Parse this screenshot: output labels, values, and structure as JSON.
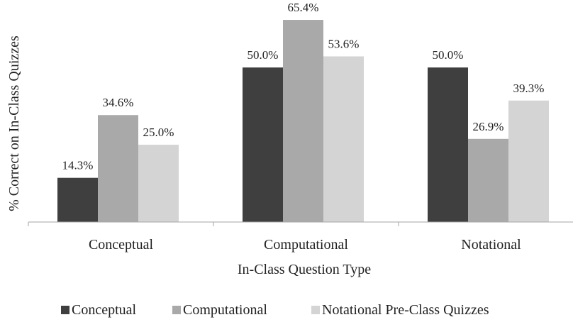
{
  "chart_data": {
    "type": "bar",
    "categories": [
      "Conceptual",
      "Computational",
      "Notational"
    ],
    "series": [
      {
        "name": "Conceptual",
        "values": [
          14.3,
          50.0,
          50.0
        ],
        "labels": [
          "14.3%",
          "50.0%",
          "50.0%"
        ]
      },
      {
        "name": "Computational",
        "values": [
          34.6,
          65.4,
          26.9
        ],
        "labels": [
          "34.6%",
          "65.4%",
          "26.9%"
        ]
      },
      {
        "name": "Notational Pre-Class Quizzes",
        "values": [
          25.0,
          53.6,
          39.3
        ],
        "labels": [
          "25.0%",
          "53.6%",
          "39.3%"
        ]
      }
    ],
    "title": "",
    "xlabel": "In-Class Question Type",
    "ylabel": "% Correct on In-Class Quizzes",
    "ylim": [
      0,
      70
    ],
    "grid": false,
    "legend_position": "bottom",
    "colors": [
      "#3f3f3f",
      "#a9a9a9",
      "#d4d4d4"
    ],
    "axis_color": "#a6a6a6"
  }
}
